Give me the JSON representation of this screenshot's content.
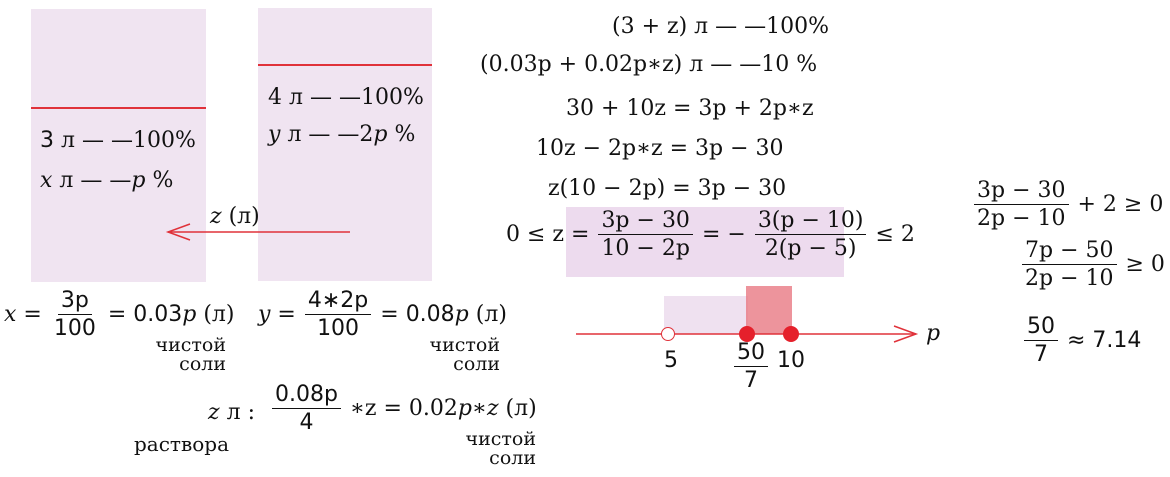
{
  "colors": {
    "beaker_fill": "#f0e4f1",
    "accent_red": "#e0323a",
    "highlight": "#eddbee",
    "interval_red": "#e87680"
  },
  "beaker_left": {
    "line1_num": "3",
    "line1_rest": "л — —100%",
    "line2_var": "x",
    "line2_rest": "л — —",
    "line2_p": "p",
    "line2_pct": "%"
  },
  "beaker_right": {
    "line1": "4 л — —100%",
    "line2_var": "y",
    "line2_rest": "л — —2",
    "line2_p": "p",
    "line2_pct": "%"
  },
  "pour": {
    "var": "z",
    "unit": "(л)"
  },
  "formula_x": {
    "lhs": "x",
    "num": "3p",
    "den": "100",
    "rhs": "0.03",
    "rhs_var": "p",
    "unit": "(л)",
    "note1": "чистой",
    "note2": "соли"
  },
  "formula_y": {
    "lhs": "y",
    "num": "4∗2p",
    "den": "100",
    "rhs": "0.08",
    "rhs_var": "p",
    "unit": "(л)",
    "note1": "чистой",
    "note2": "соли"
  },
  "formula_z": {
    "lhs": "z",
    "unit_l": "л :",
    "label": "раствора",
    "num": "0.08p",
    "den": "4",
    "rhs": "∗z = 0.02",
    "rhs_var": "p∗z",
    "unit": "(л)",
    "note1": "чистой",
    "note2": "соли"
  },
  "proportion": {
    "line1": "(3 + z) л — —100%",
    "line2": "(0.03p + 0.02p∗z) л — —10 %"
  },
  "derivation": {
    "eq1": "30 + 10z = 3p + 2p∗z",
    "eq2": "10z − 2p∗z = 3p − 30",
    "eq3": "z(10 − 2p) = 3p − 30",
    "ineq_left": "0 ≤ z =",
    "frac1_num": "3p − 30",
    "frac1_den": "10 − 2p",
    "mid": "= −",
    "frac2_num": "3(p − 10)",
    "frac2_den": "2(p − 5)",
    "ineq_right": "≤ 2"
  },
  "number_line": {
    "axis_var": "p",
    "points": [
      {
        "label": "5",
        "open": true,
        "value": 5
      },
      {
        "label_num": "50",
        "label_den": "7",
        "open": false,
        "value": 7.142857
      },
      {
        "label": "10",
        "open": false,
        "value": 10
      }
    ]
  },
  "side_work": {
    "f1_num": "3p − 30",
    "f1_den": "2p − 10",
    "f1_rest": "+ 2 ≥ 0",
    "f2_num": "7p − 50",
    "f2_den": "2p − 10",
    "f2_rest": "≥ 0",
    "f3_num": "50",
    "f3_den": "7",
    "f3_rest": "≈ 7.14"
  }
}
